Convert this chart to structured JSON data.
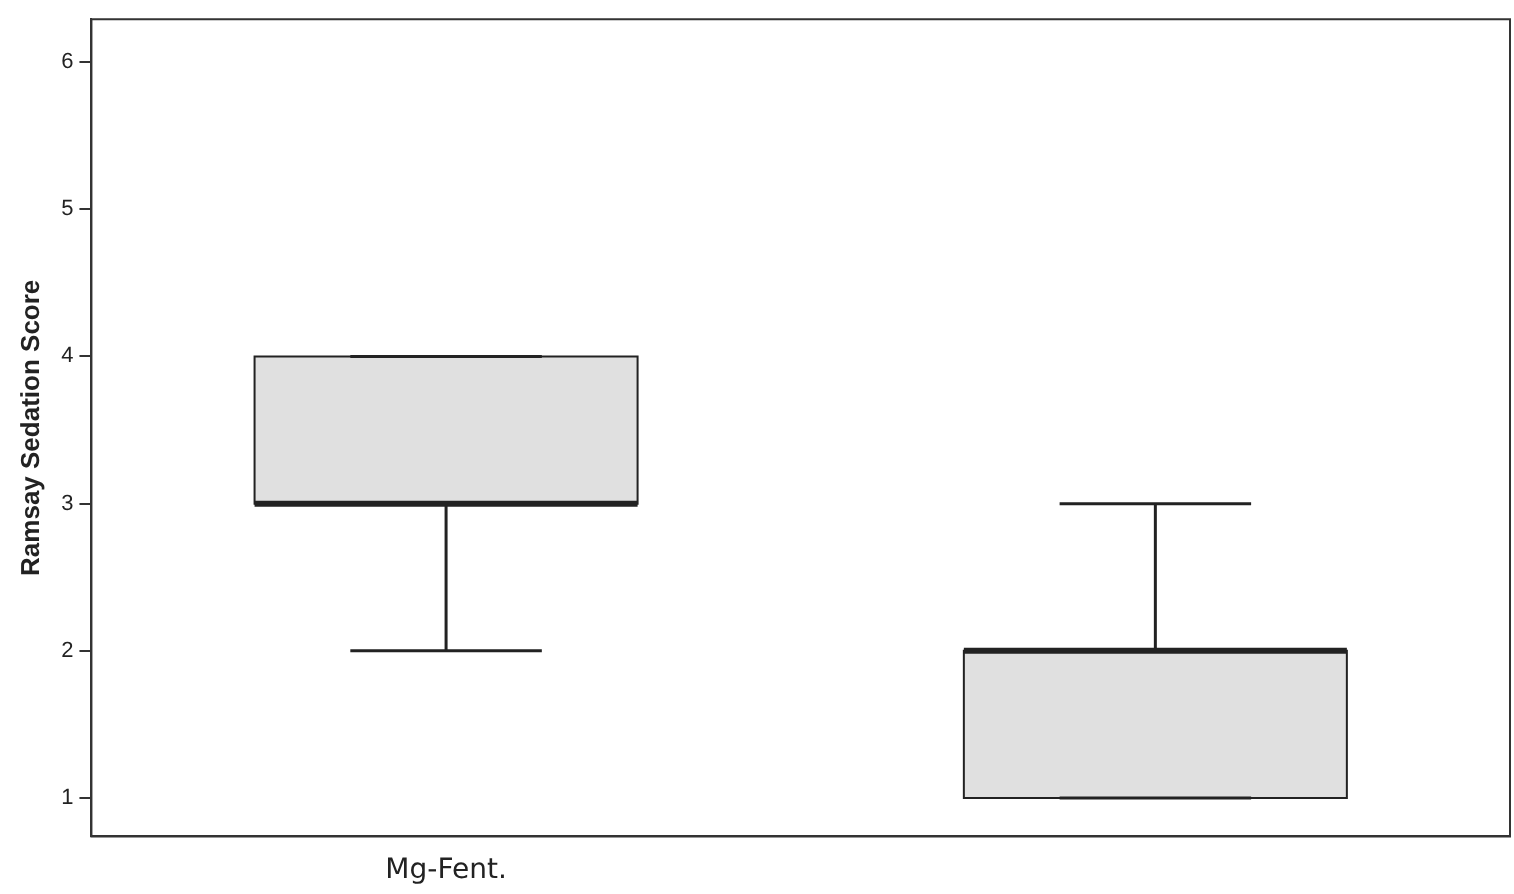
{
  "chart_data": {
    "type": "box",
    "categories": [
      "Mg-Fent.",
      null
    ],
    "boxes": [
      {
        "low": 2,
        "q1": 3,
        "median": 3,
        "q3": 4,
        "high": 4
      },
      {
        "low": 1,
        "q1": 1,
        "median": 2,
        "q3": 2,
        "high": 3
      }
    ],
    "color": "#e0e0e0",
    "ylabel": "Ramsay Sedation Score",
    "ylim": [
      0.74,
      6.29
    ],
    "yticks": [
      1,
      2,
      3,
      4,
      5,
      6
    ],
    "grid": false
  }
}
